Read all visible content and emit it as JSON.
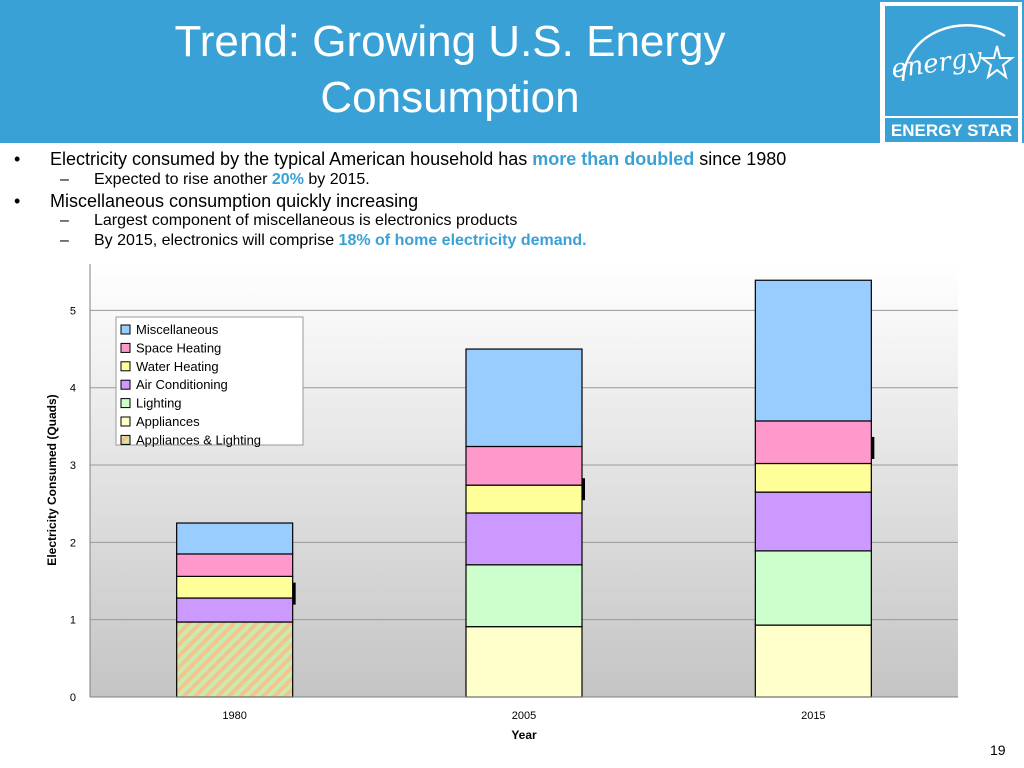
{
  "slide": {
    "title_line1": "Trend: Growing U.S. Energy",
    "title_line2": "Consumption",
    "logo_script": "energy",
    "logo_label": "ENERGY STAR",
    "page_number": "19",
    "accent_color": "#3aa1d6"
  },
  "bullets": {
    "b1_pre": "Electricity consumed by the typical American household has ",
    "b1_hl": "more than doubled",
    "b1_post": " since 1980",
    "b1a_pre": "Expected to rise another ",
    "b1a_hl": "20%",
    "b1a_post": " by 2015.",
    "b2": "Miscellaneous consumption quickly increasing",
    "b2a": "Largest component of miscellaneous is electronics products",
    "b2b_pre": "By 2015, electronics will comprise ",
    "b2b_hl": "18% of home electricity demand.",
    "bullet_mark": "•",
    "sub_mark": "–"
  },
  "chart_data": {
    "type": "bar",
    "stacked": true,
    "categories": [
      "1980",
      "2005",
      "2015"
    ],
    "xlabel": "Year",
    "ylabel": "Electricity Consumed (Quads)",
    "ylim": [
      0,
      5.6
    ],
    "yticks": [
      0,
      1,
      2,
      3,
      4,
      5
    ],
    "legend_position": "top-left",
    "grid": true,
    "series": [
      {
        "name": "Appliances & Lighting",
        "color": "#f4c38e",
        "pattern": "hatch",
        "values": [
          0.97,
          0,
          0
        ]
      },
      {
        "name": "Appliances",
        "color": "#ffffcc",
        "values": [
          0,
          0.91,
          0.93
        ]
      },
      {
        "name": "Lighting",
        "color": "#ccffcc",
        "values": [
          0,
          0.8,
          0.96
        ]
      },
      {
        "name": "Air Conditioning",
        "color": "#cc99ff",
        "values": [
          0.31,
          0.67,
          0.76
        ]
      },
      {
        "name": "Water Heating",
        "color": "#ffff99",
        "values": [
          0.28,
          0.36,
          0.37
        ]
      },
      {
        "name": "Space Heating",
        "color": "#ff99cc",
        "values": [
          0.29,
          0.5,
          0.55
        ]
      },
      {
        "name": "Miscellaneous",
        "color": "#99ccff",
        "values": [
          0.4,
          1.26,
          1.82
        ]
      }
    ],
    "legend_order": [
      "Miscellaneous",
      "Space Heating",
      "Water Heating",
      "Air Conditioning",
      "Lighting",
      "Appliances",
      "Appliances & Lighting"
    ]
  }
}
